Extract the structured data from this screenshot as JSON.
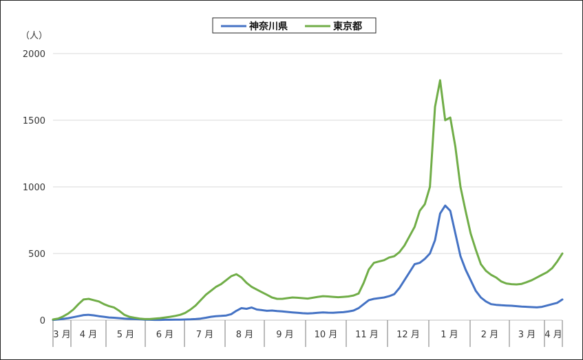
{
  "chart_data": {
    "type": "line",
    "y_unit_label": "（人）",
    "ylim": [
      0,
      2000
    ],
    "yticks": [
      0,
      500,
      1000,
      1500,
      2000
    ],
    "grid": true,
    "legend_position": "top-center",
    "month_labels": [
      "3 月",
      "4 月",
      "5 月",
      "6 月",
      "7 月",
      "8 月",
      "9 月",
      "10 月",
      "11 月",
      "12 月",
      "1 月",
      "2 月",
      "3 月",
      "4 月"
    ],
    "x": [
      0,
      4,
      8,
      12,
      16,
      20,
      24,
      28,
      32,
      36,
      40,
      44,
      48,
      52,
      56,
      60,
      64,
      68,
      72,
      76,
      80,
      84,
      88,
      92,
      96,
      100,
      104,
      108,
      112,
      116,
      120,
      124,
      128,
      132,
      136,
      140,
      144,
      148,
      152,
      156,
      160,
      164,
      168,
      172,
      176,
      180,
      184,
      188,
      192,
      196,
      200,
      204,
      208,
      212,
      216,
      220,
      224,
      228,
      232,
      236,
      240,
      244,
      248,
      252,
      256,
      260,
      264,
      268,
      272,
      276,
      280,
      284,
      288,
      292,
      296,
      300,
      304,
      308,
      312,
      316,
      320,
      324,
      328,
      332,
      336,
      340,
      344,
      348,
      352,
      356,
      360,
      364,
      368,
      372,
      376,
      380,
      384,
      388,
      392,
      396,
      400
    ],
    "series": [
      {
        "name": "神奈川県",
        "color": "#4472C4",
        "values": [
          2,
          5,
          10,
          15,
          22,
          30,
          38,
          40,
          36,
          30,
          25,
          20,
          18,
          15,
          12,
          10,
          8,
          6,
          4,
          3,
          2,
          2,
          3,
          3,
          4,
          4,
          5,
          6,
          8,
          12,
          18,
          25,
          30,
          32,
          35,
          45,
          70,
          90,
          85,
          95,
          80,
          75,
          70,
          72,
          68,
          66,
          62,
          58,
          55,
          52,
          50,
          52,
          55,
          58,
          56,
          55,
          58,
          60,
          65,
          72,
          90,
          120,
          150,
          160,
          165,
          170,
          180,
          195,
          240,
          300,
          360,
          420,
          430,
          460,
          500,
          600,
          800,
          860,
          820,
          650,
          480,
          380,
          300,
          220,
          170,
          140,
          120,
          115,
          112,
          110,
          108,
          105,
          102,
          100,
          98,
          96,
          100,
          110,
          120,
          130,
          155
        ]
      },
      {
        "name": "東京都",
        "color": "#70AD47",
        "values": [
          5,
          12,
          28,
          50,
          80,
          120,
          155,
          160,
          150,
          140,
          120,
          105,
          95,
          70,
          40,
          25,
          18,
          12,
          8,
          8,
          12,
          15,
          20,
          25,
          32,
          40,
          55,
          80,
          110,
          150,
          190,
          220,
          250,
          270,
          300,
          330,
          345,
          320,
          280,
          250,
          230,
          210,
          190,
          170,
          160,
          160,
          165,
          170,
          168,
          165,
          162,
          168,
          175,
          180,
          178,
          175,
          172,
          175,
          178,
          185,
          200,
          280,
          380,
          430,
          440,
          450,
          470,
          480,
          510,
          560,
          630,
          700,
          820,
          870,
          1000,
          1600,
          1800,
          1500,
          1520,
          1300,
          1000,
          820,
          650,
          530,
          420,
          370,
          340,
          320,
          290,
          275,
          270,
          268,
          272,
          285,
          300,
          320,
          340,
          360,
          390,
          440,
          500
        ]
      }
    ]
  }
}
